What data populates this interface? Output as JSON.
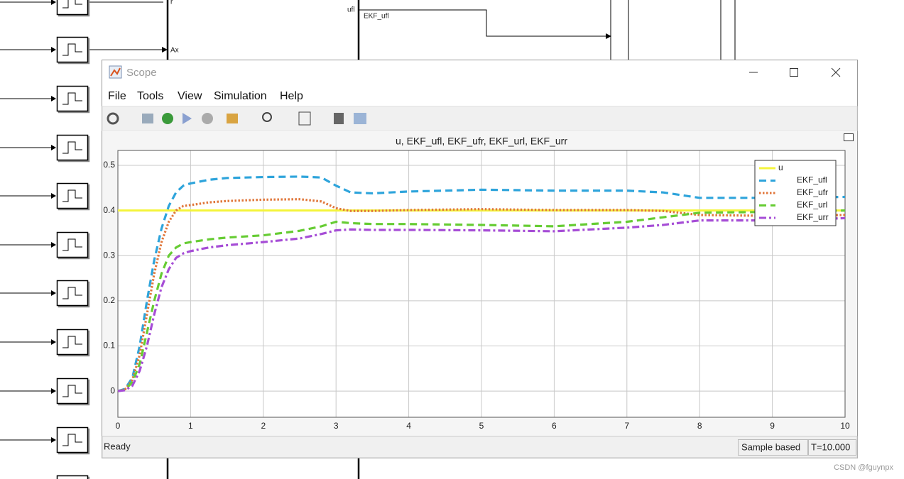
{
  "diagram": {
    "labels": [
      "r",
      "Ax",
      "ufl",
      "EKF_ufl"
    ],
    "watermark": "CSDN @fguynpx"
  },
  "window": {
    "title": "Scope",
    "menu": [
      "File",
      "Tools",
      "View",
      "Simulation",
      "Help"
    ],
    "status": {
      "left": "Ready",
      "mode": "Sample based",
      "time": "T=10.000"
    }
  },
  "chart_data": {
    "type": "line",
    "title": "u, EKF_ufl, EKF_ufr, EKF_url, EKF_urr",
    "x": [
      0,
      0.1,
      0.2,
      0.3,
      0.4,
      0.5,
      0.6,
      0.7,
      0.8,
      0.9,
      1,
      1.25,
      1.5,
      2,
      2.5,
      2.8,
      3,
      3.2,
      3.5,
      4,
      5,
      6,
      7,
      7.5,
      8,
      9,
      10
    ],
    "series": [
      {
        "name": "u",
        "color": "#f4f43c",
        "dash": "solid",
        "values": [
          0.4,
          0.4,
          0.4,
          0.4,
          0.4,
          0.4,
          0.4,
          0.4,
          0.4,
          0.4,
          0.4,
          0.4,
          0.4,
          0.4,
          0.4,
          0.4,
          0.4,
          0.4,
          0.4,
          0.4,
          0.4,
          0.4,
          0.4,
          0.4,
          0.4,
          0.4,
          0.4
        ]
      },
      {
        "name": "EKF_ufl",
        "color": "#2ea4db",
        "dash": "dashed",
        "values": [
          0,
          0.005,
          0.03,
          0.1,
          0.2,
          0.29,
          0.36,
          0.41,
          0.44,
          0.455,
          0.46,
          0.468,
          0.472,
          0.474,
          0.475,
          0.473,
          0.455,
          0.44,
          0.438,
          0.442,
          0.446,
          0.444,
          0.444,
          0.44,
          0.428,
          0.428,
          0.43
        ]
      },
      {
        "name": "EKF_ufr",
        "color": "#e0763a",
        "dash": "dotted",
        "values": [
          0,
          0.004,
          0.025,
          0.08,
          0.17,
          0.26,
          0.33,
          0.375,
          0.4,
          0.41,
          0.412,
          0.418,
          0.421,
          0.424,
          0.425,
          0.42,
          0.405,
          0.399,
          0.399,
          0.401,
          0.403,
          0.401,
          0.401,
          0.399,
          0.39,
          0.388,
          0.39
        ]
      },
      {
        "name": "EKF_url",
        "color": "#66cc33",
        "dash": "dashed",
        "values": [
          0,
          0.003,
          0.02,
          0.06,
          0.13,
          0.2,
          0.26,
          0.3,
          0.318,
          0.327,
          0.33,
          0.336,
          0.34,
          0.345,
          0.355,
          0.365,
          0.375,
          0.372,
          0.37,
          0.37,
          0.368,
          0.365,
          0.375,
          0.385,
          0.395,
          0.397,
          0.4
        ]
      },
      {
        "name": "EKF_urr",
        "color": "#a64dd6",
        "dash": "dashdot",
        "values": [
          0,
          0.002,
          0.012,
          0.045,
          0.1,
          0.17,
          0.23,
          0.27,
          0.295,
          0.305,
          0.31,
          0.318,
          0.323,
          0.33,
          0.338,
          0.348,
          0.356,
          0.358,
          0.357,
          0.357,
          0.356,
          0.354,
          0.362,
          0.368,
          0.378,
          0.378,
          0.383
        ]
      }
    ],
    "xlim": [
      0,
      10
    ],
    "xticks": [
      0,
      1,
      2,
      3,
      4,
      5,
      6,
      7,
      8,
      9,
      10
    ],
    "ylim": [
      -0.058,
      0.533
    ],
    "yticks": [
      0,
      0.1,
      0.2,
      0.3,
      0.4,
      0.5
    ],
    "grid": true,
    "legend": "top-right"
  }
}
